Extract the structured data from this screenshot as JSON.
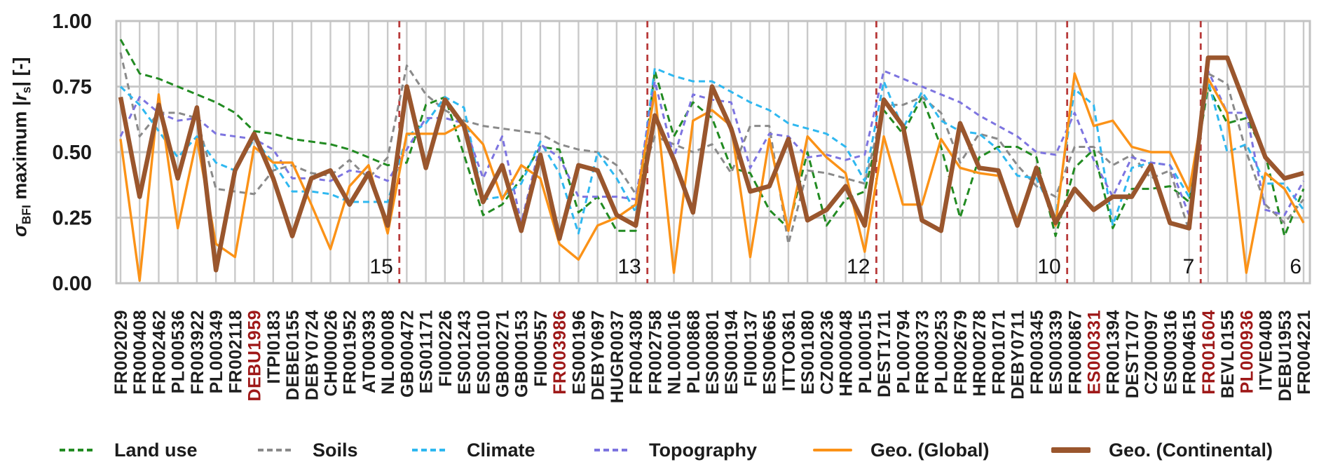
{
  "chart_data": {
    "type": "line",
    "title": "",
    "ylabel_segments": [
      {
        "text": "σ",
        "italic": true
      },
      {
        "text": "BFI",
        "sub": true
      },
      {
        "text": " maximum |"
      },
      {
        "text": "r",
        "italic": true
      },
      {
        "text": "s",
        "sub": true
      },
      {
        "text": "| [-]"
      }
    ],
    "ylim": [
      0,
      1
    ],
    "grid": true,
    "legend_position": "bottom",
    "yticks": [
      {
        "label": "1.00",
        "value": 1.0
      },
      {
        "label": "0.75",
        "value": 0.75
      },
      {
        "label": "0.50",
        "value": 0.5
      },
      {
        "label": "0.25",
        "value": 0.25
      },
      {
        "label": "0.00",
        "value": 0.0
      }
    ],
    "categories": [
      "FR002029",
      "FR000408",
      "FR002462",
      "PL000536",
      "FR003922",
      "PL000349",
      "FR002118",
      "DEBU1959",
      "ITPI0183",
      "DEBE0155",
      "DEBY0724",
      "CH000026",
      "FR001952",
      "AT000393",
      "NL000008",
      "GB000472",
      "ES001171",
      "FI000226",
      "ES001243",
      "ES001010",
      "GB000271",
      "GB000153",
      "FI000557",
      "FR003986",
      "ES000196",
      "DEBY0697",
      "HUGR0037",
      "FR004308",
      "FR002758",
      "NL000016",
      "PL000868",
      "ES000801",
      "ES000194",
      "FI000137",
      "ES000665",
      "ITTO0361",
      "ES001080",
      "CZ000236",
      "HR000048",
      "PL000015",
      "DEST1711",
      "PL000794",
      "FR000373",
      "PL000253",
      "FR002679",
      "HR000278",
      "FR001071",
      "DEBY0711",
      "FR000345",
      "ES000339",
      "FR000867",
      "ES000331",
      "FR001394",
      "DEST1707",
      "CZ000097",
      "ES000316",
      "FR004615",
      "FR001604",
      "BEVL0155",
      "PL000936",
      "ITVE0408",
      "DEBU1953",
      "FR004221"
    ],
    "highlighted_categories": [
      "DEBU1959",
      "FR003986",
      "ES000331",
      "FR001604",
      "PL000936"
    ],
    "clusters": {
      "sizes": [
        15,
        13,
        12,
        10,
        7,
        6
      ],
      "labels": [
        "15",
        "13",
        "12",
        "10",
        "7",
        "6"
      ]
    },
    "series": [
      {
        "name": "Land use",
        "color": "#228b22",
        "dash": "10 6",
        "width": 3,
        "values": [
          0.93,
          0.8,
          0.78,
          0.75,
          0.72,
          0.69,
          0.65,
          0.58,
          0.57,
          0.55,
          0.54,
          0.53,
          0.51,
          0.48,
          0.45,
          0.46,
          0.68,
          0.71,
          0.49,
          0.26,
          0.3,
          0.4,
          0.52,
          0.51,
          0.27,
          0.33,
          0.2,
          0.2,
          0.81,
          0.56,
          0.69,
          0.63,
          0.44,
          0.42,
          0.28,
          0.21,
          0.5,
          0.22,
          0.32,
          0.35,
          0.66,
          0.57,
          0.71,
          0.52,
          0.25,
          0.48,
          0.52,
          0.52,
          0.48,
          0.18,
          0.44,
          0.51,
          0.21,
          0.36,
          0.36,
          0.37,
          0.31,
          0.75,
          0.61,
          0.63,
          0.49,
          0.18,
          0.36
        ]
      },
      {
        "name": "Soils",
        "color": "#8a8a8a",
        "dash": "9 6",
        "width": 3,
        "values": [
          0.88,
          0.56,
          0.65,
          0.65,
          0.63,
          0.36,
          0.35,
          0.34,
          0.43,
          0.45,
          0.42,
          0.41,
          0.47,
          0.4,
          0.48,
          0.83,
          0.72,
          0.66,
          0.62,
          0.6,
          0.59,
          0.58,
          0.57,
          0.53,
          0.51,
          0.5,
          0.45,
          0.34,
          0.56,
          0.53,
          0.5,
          0.53,
          0.42,
          0.6,
          0.6,
          0.15,
          0.43,
          0.42,
          0.4,
          0.38,
          0.68,
          0.68,
          0.71,
          0.65,
          0.46,
          0.57,
          0.55,
          0.45,
          0.37,
          0.33,
          0.52,
          0.52,
          0.45,
          0.49,
          0.4,
          0.43,
          0.2,
          0.8,
          0.76,
          0.5,
          0.3,
          0.23,
          0.32
        ]
      },
      {
        "name": "Climate",
        "color": "#2fb8f0",
        "dash": "9 6",
        "width": 3,
        "values": [
          0.75,
          0.68,
          0.58,
          0.48,
          0.56,
          0.46,
          0.43,
          0.55,
          0.46,
          0.35,
          0.35,
          0.34,
          0.31,
          0.31,
          0.31,
          0.56,
          0.61,
          0.71,
          0.67,
          0.32,
          0.33,
          0.38,
          0.54,
          0.42,
          0.19,
          0.5,
          0.4,
          0.27,
          0.82,
          0.79,
          0.77,
          0.77,
          0.73,
          0.69,
          0.66,
          0.61,
          0.59,
          0.57,
          0.52,
          0.39,
          0.77,
          0.59,
          0.73,
          0.62,
          0.58,
          0.57,
          0.51,
          0.41,
          0.4,
          0.25,
          0.74,
          0.68,
          0.22,
          0.44,
          0.46,
          0.45,
          0.33,
          0.77,
          0.5,
          0.53,
          0.38,
          0.38,
          0.28
        ]
      },
      {
        "name": "Topography",
        "color": "#7d74e0",
        "dash": "8 6",
        "width": 3,
        "values": [
          0.56,
          0.71,
          0.65,
          0.62,
          0.63,
          0.57,
          0.56,
          0.55,
          0.51,
          0.4,
          0.4,
          0.39,
          0.43,
          0.42,
          0.39,
          0.51,
          0.63,
          0.63,
          0.61,
          0.4,
          0.56,
          0.23,
          0.53,
          0.48,
          0.33,
          0.33,
          0.33,
          0.32,
          0.77,
          0.48,
          0.72,
          0.7,
          0.69,
          0.44,
          0.57,
          0.56,
          0.48,
          0.49,
          0.47,
          0.49,
          0.81,
          0.78,
          0.75,
          0.72,
          0.69,
          0.64,
          0.6,
          0.56,
          0.5,
          0.49,
          0.65,
          0.47,
          0.33,
          0.48,
          0.46,
          0.45,
          0.26,
          0.81,
          0.65,
          0.65,
          0.28,
          0.26,
          0.39
        ]
      },
      {
        "name": "Geo. (Global)",
        "color": "#fb9217",
        "dash": null,
        "width": 3.4,
        "values": [
          0.55,
          0.01,
          0.72,
          0.21,
          0.55,
          0.15,
          0.1,
          0.52,
          0.46,
          0.46,
          0.3,
          0.13,
          0.37,
          0.45,
          0.19,
          0.57,
          0.57,
          0.57,
          0.61,
          0.53,
          0.32,
          0.45,
          0.4,
          0.15,
          0.09,
          0.22,
          0.25,
          0.3,
          0.73,
          0.04,
          0.62,
          0.66,
          0.6,
          0.1,
          0.55,
          0.2,
          0.56,
          0.48,
          0.42,
          0.12,
          0.56,
          0.3,
          0.3,
          0.55,
          0.44,
          0.42,
          0.41,
          0.24,
          0.44,
          0.22,
          0.8,
          0.6,
          0.62,
          0.52,
          0.5,
          0.5,
          0.35,
          0.78,
          0.65,
          0.04,
          0.42,
          0.36,
          0.23
        ]
      },
      {
        "name": "Geo. (Continental)",
        "color": "#9a562d",
        "dash": null,
        "width": 6.5,
        "values": [
          0.71,
          0.33,
          0.68,
          0.4,
          0.67,
          0.05,
          0.43,
          0.57,
          0.4,
          0.18,
          0.4,
          0.43,
          0.3,
          0.42,
          0.22,
          0.75,
          0.44,
          0.7,
          0.6,
          0.31,
          0.45,
          0.2,
          0.49,
          0.17,
          0.45,
          0.43,
          0.26,
          0.22,
          0.64,
          0.47,
          0.27,
          0.75,
          0.59,
          0.35,
          0.37,
          0.55,
          0.24,
          0.28,
          0.37,
          0.22,
          0.7,
          0.6,
          0.24,
          0.2,
          0.61,
          0.44,
          0.43,
          0.22,
          0.44,
          0.23,
          0.36,
          0.28,
          0.33,
          0.33,
          0.45,
          0.23,
          0.21,
          0.86,
          0.86,
          0.67,
          0.48,
          0.4,
          0.42
        ]
      }
    ],
    "colors": {
      "grid": "#c9c9c9",
      "border": "#c2c2c2",
      "divider": "#b83a3a",
      "tick_text": "#1a1a1a",
      "category_text": "#1f1f1f",
      "highlight_text": "#9e1818",
      "cluster_text": "#141414"
    }
  }
}
